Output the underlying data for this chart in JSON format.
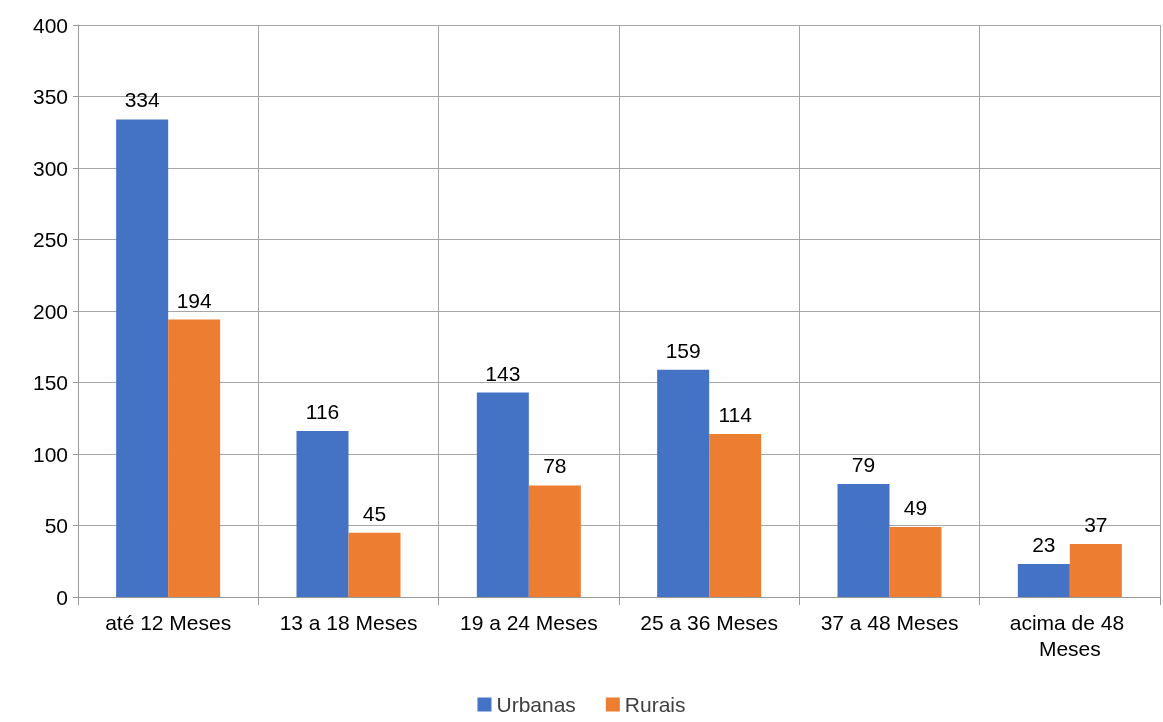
{
  "chart_data": {
    "type": "bar",
    "categories": [
      "até 12 Meses",
      "13 a 18 Meses",
      "19 a 24 Meses",
      "25 a 36 Meses",
      "37 a 48 Meses",
      "acima de 48 Meses"
    ],
    "series": [
      {
        "name": "Urbanas",
        "color": "#4472c4",
        "values": [
          334,
          116,
          143,
          159,
          79,
          23
        ]
      },
      {
        "name": "Rurais",
        "color": "#ed7d31",
        "values": [
          194,
          45,
          78,
          114,
          49,
          37
        ]
      }
    ],
    "ylim": [
      0,
      400
    ],
    "yticks": [
      0,
      50,
      100,
      150,
      200,
      250,
      300,
      350,
      400
    ],
    "grid": true,
    "legend": "bottom",
    "data_labels": true
  }
}
